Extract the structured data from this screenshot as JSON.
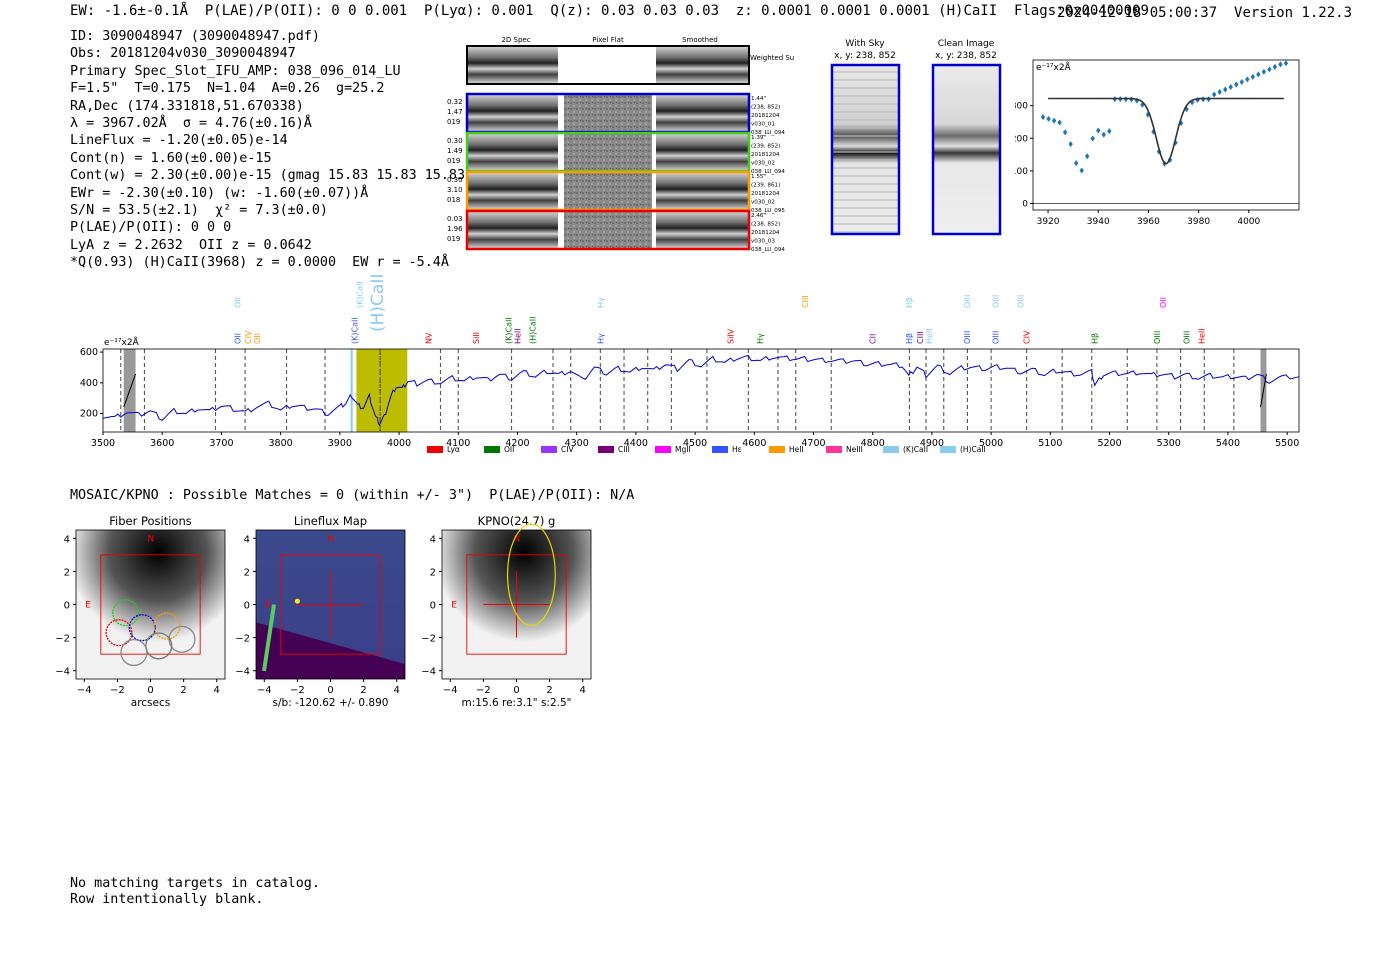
{
  "header": {
    "line": "EW: -1.6±-0.1Å  P(LAE)/P(OII): 0 0 0.001  P(Lyα): 0.001  Q(z): 0.03 0.03 0.03  z: 0.0001 0.0001 0.0001 (H)CaII  Flags:0x00400009",
    "timestamp": "2024-12-18 05:00:37",
    "version": "Version 1.22.3"
  },
  "info": [
    "ID: 3090048947 (3090048947.pdf)",
    "Obs: 20181204v030_3090048947",
    "Primary Spec_Slot_IFU_AMP: 038_096_014_LU",
    "F=1.5\"  T=0.175  N=1.04  A=0.26  g=25.2",
    "RA,Dec (174.331818,51.670338)",
    "λ = 3967.02Å  σ = 4.76(±0.16)Å",
    "LineFlux = -1.20(±0.05)e-14",
    "Cont(n) = 1.60(±0.00)e-15",
    "Cont(w) = 2.30(±0.00)e-15 (gmag 15.83 15.83 15.83 *)",
    "EWr = -2.30(±0.10) (w: -1.60(±0.07))Å",
    "S/N = 53.5(±2.1)  χ² = 7.3(±0.0)",
    "P(LAE)/P(OII): 0 0 0",
    "LyA z = 2.2632  OII z = 0.0642",
    "*Q(0.93) (H)CaII(3968) z = 0.0000  EW r = -5.4Å"
  ],
  "cutouts": {
    "headers": [
      "2D Spec",
      "Pixel Flat",
      "Smoothed"
    ],
    "weighted_label": "Weighted Sum",
    "rows": [
      {
        "left": [
          "0.32",
          "1.47",
          "019"
        ],
        "right": [
          "1.44\"",
          "(238, 852)",
          "20181204",
          "v030_01",
          "038_LU_094"
        ],
        "color": "#0000cc"
      },
      {
        "left": [
          "0.30",
          "1.49",
          "019"
        ],
        "right": [
          "1.39\"",
          "(239, 852)",
          "20181204",
          "v030_02",
          "038_LU_094"
        ],
        "color": "#44cc22"
      },
      {
        "left": [
          "0.30",
          "3.10",
          "018"
        ],
        "right": [
          "1.55\"",
          "(239, 861)",
          "20181204",
          "v030_02",
          "038_LU_095"
        ],
        "color": "#ff9900"
      },
      {
        "left": [
          "0.03",
          "1.96",
          "019"
        ],
        "right": [
          "2.46\"",
          "(238, 852)",
          "20181204",
          "v030_03",
          "038_LU_094"
        ],
        "color": "#ee0000"
      }
    ]
  },
  "panels": {
    "with_sky": {
      "title": "With Sky",
      "subtitle": "x, y: 238, 852"
    },
    "clean": {
      "title": "Clean Image",
      "subtitle": "x, y: 238, 852"
    }
  },
  "zoom_chart": {
    "unit": "e⁻¹⁷x2Å",
    "x_ticks": [
      3920,
      3940,
      3960,
      3980,
      4000
    ],
    "y_ticks": [
      0,
      100,
      200,
      300
    ],
    "xlim": [
      3914,
      4020
    ],
    "ylim": [
      -20,
      440
    ]
  },
  "chart_data": {
    "type": "line",
    "title": "",
    "ylabel": "e⁻¹⁷x2Å",
    "xlim": [
      3500,
      5520
    ],
    "ylim": [
      80,
      620
    ],
    "x_ticks": [
      3500,
      3600,
      3700,
      3800,
      3900,
      4000,
      4100,
      4200,
      4300,
      4400,
      4500,
      4600,
      4700,
      4800,
      4900,
      5000,
      5100,
      5200,
      5300,
      5400,
      5500
    ],
    "y_ticks": [
      200,
      400,
      600
    ],
    "series": [
      {
        "name": "spectrum",
        "color": "#0000cc",
        "x": [
          3500,
          3520,
          3540,
          3560,
          3580,
          3600,
          3620,
          3640,
          3660,
          3680,
          3700,
          3720,
          3740,
          3760,
          3780,
          3800,
          3820,
          3840,
          3860,
          3880,
          3900,
          3910,
          3920,
          3930,
          3940,
          3950,
          3960,
          3967,
          3975,
          3985,
          3995,
          4005,
          4015,
          4030,
          4050,
          4070,
          4090,
          4110,
          4130,
          4150,
          4170,
          4190,
          4210,
          4230,
          4250,
          4270,
          4290,
          4310,
          4330,
          4350,
          4370,
          4390,
          4410,
          4430,
          4450,
          4470,
          4490,
          4510,
          4530,
          4550,
          4570,
          4590,
          4610,
          4630,
          4650,
          4670,
          4690,
          4710,
          4730,
          4750,
          4770,
          4790,
          4810,
          4830,
          4850,
          4861,
          4875,
          4890,
          4910,
          4930,
          4950,
          4970,
          4990,
          5010,
          5030,
          5050,
          5070,
          5090,
          5110,
          5130,
          5150,
          5170,
          5175,
          5190,
          5210,
          5230,
          5250,
          5270,
          5290,
          5310,
          5330,
          5350,
          5370,
          5390,
          5410,
          5430,
          5450,
          5470,
          5490,
          5520
        ],
        "values": [
          185,
          175,
          210,
          190,
          215,
          165,
          220,
          200,
          235,
          215,
          250,
          230,
          210,
          245,
          265,
          220,
          255,
          240,
          230,
          200,
          245,
          265,
          320,
          255,
          240,
          310,
          180,
          135,
          180,
          300,
          380,
          360,
          410,
          395,
          415,
          400,
          430,
          410,
          440,
          420,
          455,
          430,
          470,
          440,
          475,
          455,
          480,
          415,
          500,
          460,
          495,
          470,
          505,
          480,
          520,
          490,
          545,
          510,
          555,
          530,
          560,
          565,
          545,
          570,
          560,
          555,
          555,
          550,
          545,
          540,
          540,
          520,
          525,
          520,
          515,
          440,
          505,
          450,
          510,
          460,
          495,
          500,
          490,
          505,
          495,
          470,
          485,
          450,
          480,
          465,
          455,
          470,
          380,
          455,
          465,
          460,
          470,
          450,
          455,
          440,
          455,
          430,
          445,
          435,
          440,
          430,
          455,
          410,
          435,
          440
        ]
      }
    ],
    "gap_regions": [
      [
        3920,
        3928
      ],
      [
        3929,
        4014
      ]
    ],
    "dashed_lines": [
      3530,
      3570,
      3690,
      3740,
      3810,
      3875,
      3968,
      4070,
      4100,
      4190,
      4260,
      4290,
      4340,
      4380,
      4420,
      4460,
      4520,
      4590,
      4640,
      4670,
      4730,
      4862,
      4890,
      4920,
      4960,
      5000,
      5060,
      5120,
      5170,
      5230,
      5280,
      5320,
      5360,
      5410
    ],
    "legend": [
      {
        "name": "Lyα",
        "color": "#ee0000"
      },
      {
        "name": "OII",
        "color": "#007700"
      },
      {
        "name": "CIV",
        "color": "#9933ff"
      },
      {
        "name": "CIII",
        "color": "#770077"
      },
      {
        "name": "MgII",
        "color": "#ff00ff"
      },
      {
        "name": "Hε",
        "color": "#3355ff"
      },
      {
        "name": "HeII",
        "color": "#ff9900"
      },
      {
        "name": "NeIII",
        "color": "#ff3399"
      },
      {
        "name": "(K)CaII",
        "color": "#88ccee"
      },
      {
        "name": "(H)CaII",
        "color": "#88ccee"
      }
    ],
    "line_labels_top": [
      {
        "x": 3727,
        "label": "OII",
        "color": "#88ccee"
      },
      {
        "x": 3933,
        "label": "(K)CaII",
        "color": "#88ccee"
      },
      {
        "x": 3968,
        "label": "(H)CaII",
        "color": "#88ccee"
      },
      {
        "x": 4340,
        "label": "Hγ",
        "color": "#88ccee"
      },
      {
        "x": 4686,
        "label": "CIII",
        "color": "#ff9900"
      },
      {
        "x": 4861,
        "label": "Hβ",
        "color": "#88ccee"
      },
      {
        "x": 4959,
        "label": "OIII",
        "color": "#88ccee"
      },
      {
        "x": 5007,
        "label": "OIII",
        "color": "#88ccee"
      },
      {
        "x": 5050,
        "label": "OIII",
        "color": "#88ccee"
      },
      {
        "x": 5290,
        "label": "OII",
        "color": "#ff00ff"
      }
    ],
    "line_labels_bottom": [
      {
        "x": 3727,
        "label": "OII",
        "color": "#3355ff"
      },
      {
        "x": 3745,
        "label": "CIV",
        "color": "#ff9900"
      },
      {
        "x": 3760,
        "label": "OII",
        "color": "#ff9900"
      },
      {
        "x": 3925,
        "label": "(K)CaII",
        "color": "#3355ff"
      },
      {
        "x": 4050,
        "label": "NV",
        "color": "#ee0000"
      },
      {
        "x": 4130,
        "label": "SiII",
        "color": "#ee0000"
      },
      {
        "x": 4185,
        "label": "(K)CaII",
        "color": "#007700"
      },
      {
        "x": 4200,
        "label": "HeII",
        "color": "#770077"
      },
      {
        "x": 4225,
        "label": "(H)CaII",
        "color": "#007700"
      },
      {
        "x": 4340,
        "label": "Hγ",
        "color": "#3355ff"
      },
      {
        "x": 4560,
        "label": "SiIV",
        "color": "#ee0000"
      },
      {
        "x": 4610,
        "label": "Hγ",
        "color": "#007700"
      },
      {
        "x": 4800,
        "label": "CII",
        "color": "#770077"
      },
      {
        "x": 4861,
        "label": "Hβ",
        "color": "#3355ff"
      },
      {
        "x": 4880,
        "label": "CIII",
        "color": "#770077"
      },
      {
        "x": 4895,
        "label": "HeII",
        "color": "#88ccee"
      },
      {
        "x": 4959,
        "label": "OIII",
        "color": "#3355ff"
      },
      {
        "x": 5007,
        "label": "OIII",
        "color": "#3355ff"
      },
      {
        "x": 5060,
        "label": "CIV",
        "color": "#ee0000"
      },
      {
        "x": 5175,
        "label": "Hβ",
        "color": "#007700"
      },
      {
        "x": 5280,
        "label": "OIII",
        "color": "#007700"
      },
      {
        "x": 5330,
        "label": "OIII",
        "color": "#007700"
      },
      {
        "x": 5355,
        "label": "HeII",
        "color": "#ee0000"
      }
    ]
  },
  "mosaic_line": "MOSAIC/KPNO : Possible Matches = 0 (within +/- 3\")  P(LAE)/P(OII): N/A",
  "thumbs": [
    {
      "title": "Fiber Positions",
      "xlabel": "arcsecs"
    },
    {
      "title": "Lineflux Map",
      "xlabel": "s/b: -120.62 +/- 0.890"
    },
    {
      "title": "KPNO(24.7) g",
      "xlabel": "m:15.6  re:3.1\"  s:2.5\""
    }
  ],
  "thumb_ticks": [
    "4",
    "2",
    "0",
    "−2",
    "−4"
  ],
  "thumb_xticks": [
    "−4",
    "−2",
    "0",
    "2",
    "4"
  ],
  "compass": {
    "n": "N",
    "e": "E"
  },
  "footer": [
    "No matching targets in catalog.",
    "Row intentionally blank."
  ]
}
